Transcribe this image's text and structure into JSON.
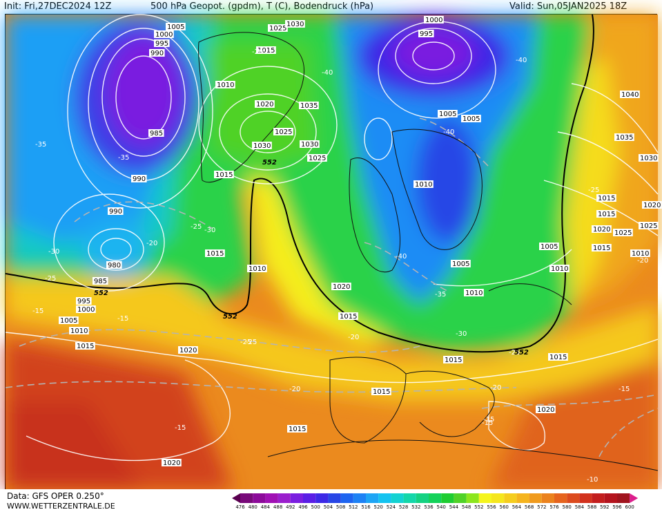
{
  "header": {
    "init": "Init: Fri,27DEC2024 12Z",
    "title": "500 hPa Geopot. (gpdm), T (C), Bodendruck (hPa)",
    "valid": "Valid: Sun,05JAN2025 18Z"
  },
  "footer": {
    "data_source": "Data: GFS OPER 0.250°",
    "website": "WWW.WETTERZENTRALE.DE"
  },
  "colorbar": {
    "labels": [
      "476",
      "480",
      "484",
      "488",
      "492",
      "496",
      "500",
      "504",
      "508",
      "512",
      "516",
      "520",
      "524",
      "528",
      "532",
      "536",
      "540",
      "544",
      "548",
      "552",
      "556",
      "560",
      "564",
      "568",
      "572",
      "576",
      "580",
      "584",
      "588",
      "592",
      "596",
      "600"
    ],
    "colors": [
      "#5a0050",
      "#780a7a",
      "#8c0a9a",
      "#a010b4",
      "#9a1ecd",
      "#7a1ee0",
      "#5a1ee6",
      "#3c28e6",
      "#2846e6",
      "#1e64f0",
      "#1e82f5",
      "#1ea5f5",
      "#14c3f0",
      "#14d2d2",
      "#14d7aa",
      "#14d282",
      "#14d25a",
      "#1ecd32",
      "#50d228",
      "#8ce61e",
      "#f5f51e",
      "#f5e61e",
      "#f5cd1e",
      "#f5b41e",
      "#f09b1e",
      "#eb821e",
      "#e6641e",
      "#dc4b1e",
      "#d2321e",
      "#c31e1e",
      "#b4141e",
      "#a0141e",
      "#dc1e8c"
    ]
  },
  "pressure_labels": [
    {
      "id": "p1",
      "text": "1005"
    },
    {
      "id": "p2",
      "text": "1000"
    },
    {
      "id": "p3",
      "text": "995"
    },
    {
      "id": "p4",
      "text": "990"
    },
    {
      "id": "p5",
      "text": "985"
    },
    {
      "id": "p6",
      "text": "990"
    },
    {
      "id": "p7",
      "text": "990"
    },
    {
      "id": "p8",
      "text": "980"
    },
    {
      "id": "p9",
      "text": "985"
    },
    {
      "id": "p10",
      "text": "995"
    },
    {
      "id": "p11",
      "text": "1000"
    },
    {
      "id": "p12",
      "text": "1005"
    },
    {
      "id": "p13",
      "text": "1010"
    },
    {
      "id": "p14",
      "text": "1015"
    },
    {
      "id": "p15",
      "text": "1020"
    },
    {
      "id": "p16",
      "text": "1020"
    },
    {
      "id": "p17",
      "text": "1015"
    },
    {
      "id": "p18",
      "text": "1015"
    },
    {
      "id": "p19",
      "text": "1010"
    },
    {
      "id": "p20",
      "text": "1015"
    },
    {
      "id": "p21",
      "text": "1025"
    },
    {
      "id": "p22",
      "text": "1030"
    },
    {
      "id": "p23",
      "text": "1020"
    },
    {
      "id": "p24",
      "text": "1025"
    },
    {
      "id": "p25",
      "text": "1030"
    },
    {
      "id": "p26",
      "text": "1035"
    },
    {
      "id": "p27",
      "text": "1030"
    },
    {
      "id": "p28",
      "text": "1025"
    },
    {
      "id": "p29",
      "text": "1015"
    },
    {
      "id": "p30",
      "text": "1010"
    },
    {
      "id": "p31",
      "text": "1020"
    },
    {
      "id": "p32",
      "text": "1015"
    },
    {
      "id": "p33",
      "text": "1015"
    },
    {
      "id": "p34",
      "text": "1015"
    },
    {
      "id": "p35",
      "text": "995"
    },
    {
      "id": "p36",
      "text": "1000"
    },
    {
      "id": "p37",
      "text": "1005"
    },
    {
      "id": "p38",
      "text": "1005"
    },
    {
      "id": "p39",
      "text": "1010"
    },
    {
      "id": "p40",
      "text": "1005"
    },
    {
      "id": "p41",
      "text": "1010"
    },
    {
      "id": "p42",
      "text": "1005"
    },
    {
      "id": "p43",
      "text": "1010"
    },
    {
      "id": "p44",
      "text": "1015"
    },
    {
      "id": "p45",
      "text": "1020"
    },
    {
      "id": "p46",
      "text": "1040"
    },
    {
      "id": "p47",
      "text": "1035"
    },
    {
      "id": "p48",
      "text": "1030"
    },
    {
      "id": "p49",
      "text": "1020"
    },
    {
      "id": "p50",
      "text": "1025"
    },
    {
      "id": "p51",
      "text": "1015"
    },
    {
      "id": "p52",
      "text": "1020"
    },
    {
      "id": "p53",
      "text": "1015"
    },
    {
      "id": "p54",
      "text": "1010"
    },
    {
      "id": "p55",
      "text": "1015"
    },
    {
      "id": "p56",
      "text": "1025"
    }
  ],
  "temperature_labels": [
    {
      "id": "t1",
      "text": "-35"
    },
    {
      "id": "t2",
      "text": "-35"
    },
    {
      "id": "t3",
      "text": "-30"
    },
    {
      "id": "t4",
      "text": "-25"
    },
    {
      "id": "t5",
      "text": "-20"
    },
    {
      "id": "t6",
      "text": "-25"
    },
    {
      "id": "t7",
      "text": "-30"
    },
    {
      "id": "t8",
      "text": "-25"
    },
    {
      "id": "t9",
      "text": "-15"
    },
    {
      "id": "t10",
      "text": "-15"
    },
    {
      "id": "t11",
      "text": "-25"
    },
    {
      "id": "t12",
      "text": "-20"
    },
    {
      "id": "t13",
      "text": "-20"
    },
    {
      "id": "t14",
      "text": "-15"
    },
    {
      "id": "t15",
      "text": "-15"
    },
    {
      "id": "t16",
      "text": "-20"
    },
    {
      "id": "t17",
      "text": "-40"
    },
    {
      "id": "t18",
      "text": "-40"
    },
    {
      "id": "t19",
      "text": "-40"
    },
    {
      "id": "t20",
      "text": "-40"
    },
    {
      "id": "t21",
      "text": "-35"
    },
    {
      "id": "t22",
      "text": "-30"
    },
    {
      "id": "t23",
      "text": "-25"
    },
    {
      "id": "t24",
      "text": "-20"
    },
    {
      "id": "t25",
      "text": "-25"
    },
    {
      "id": "t26",
      "text": "-20"
    },
    {
      "id": "t27",
      "text": "-15"
    },
    {
      "id": "t28",
      "text": "-15"
    },
    {
      "id": "t29",
      "text": "-10"
    }
  ],
  "geopotential_labels": [
    {
      "id": "g1",
      "text": "552"
    },
    {
      "id": "g2",
      "text": "552"
    },
    {
      "id": "g3",
      "text": "552"
    },
    {
      "id": "g4",
      "text": "552"
    }
  ]
}
